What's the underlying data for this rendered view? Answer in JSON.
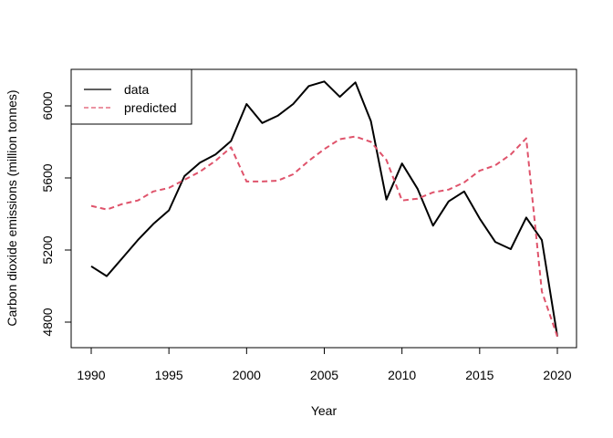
{
  "chart_data": {
    "type": "line",
    "title": "",
    "xlabel": "Year",
    "ylabel": "Carbon dioxide emissions (million tonnes)",
    "xlim": [
      1990,
      2020
    ],
    "ylim": [
      4800,
      6000
    ],
    "x_ticks": [
      "1990",
      "1995",
      "2000",
      "2005",
      "2010",
      "2015",
      "2020"
    ],
    "y_ticks": [
      "4800",
      "5200",
      "5600",
      "6000"
    ],
    "grid": false,
    "legend_position": "top-left",
    "x": [
      1990,
      1991,
      1992,
      1993,
      1994,
      1995,
      1996,
      1997,
      1998,
      1999,
      2000,
      2001,
      2002,
      2003,
      2004,
      2005,
      2006,
      2007,
      2008,
      2009,
      2010,
      2011,
      2012,
      2013,
      2014,
      2015,
      2016,
      2017,
      2018,
      2019,
      2020
    ],
    "series": [
      {
        "name": "data",
        "color": "#000000",
        "dash": "solid",
        "values": [
          5110,
          5055,
          5155,
          5255,
          5345,
          5420,
          5610,
          5685,
          5730,
          5805,
          6010,
          5905,
          5945,
          6010,
          6110,
          6135,
          6050,
          6130,
          5915,
          5480,
          5680,
          5540,
          5335,
          5470,
          5525,
          5375,
          5245,
          5205,
          5380,
          5255,
          4720
        ]
      },
      {
        "name": "predicted",
        "color": "#DF536B",
        "dash": "dashed",
        "values": [
          5445,
          5425,
          5455,
          5475,
          5525,
          5545,
          5590,
          5635,
          5695,
          5770,
          5580,
          5580,
          5585,
          5620,
          5695,
          5760,
          5815,
          5830,
          5800,
          5700,
          5475,
          5485,
          5520,
          5535,
          5575,
          5640,
          5670,
          5730,
          5820,
          4970,
          4720
        ]
      }
    ]
  }
}
